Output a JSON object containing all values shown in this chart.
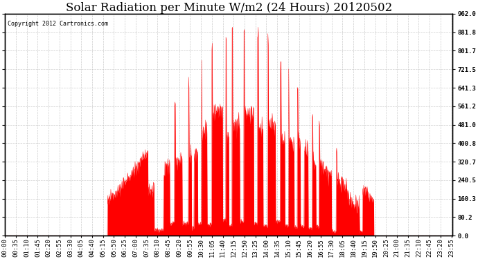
{
  "title": "Solar Radiation per Minute W/m2 (24 Hours) 20120502",
  "copyright_text": "Copyright 2012 Cartronics.com",
  "ylabel_right": [
    "962.0",
    "881.8",
    "801.7",
    "721.5",
    "641.3",
    "561.2",
    "481.0",
    "400.8",
    "320.7",
    "240.5",
    "160.3",
    "80.2",
    "0.0"
  ],
  "ymax": 962.0,
  "ymin": 0.0,
  "yticks": [
    0.0,
    80.2,
    160.3,
    240.5,
    320.7,
    400.8,
    481.0,
    561.2,
    641.3,
    721.5,
    801.7,
    881.8,
    962.0
  ],
  "fill_color": "#FF0000",
  "line_color": "#FF0000",
  "background_color": "#FFFFFF",
  "grid_color": "#C0C0C0",
  "dashed_line_color": "#FF0000",
  "title_fontsize": 12,
  "tick_fontsize": 6.5,
  "x_tick_labels": [
    "00:00",
    "00:35",
    "01:10",
    "01:45",
    "02:20",
    "02:55",
    "03:30",
    "04:05",
    "04:40",
    "05:15",
    "05:50",
    "06:25",
    "07:00",
    "07:35",
    "08:10",
    "08:45",
    "09:20",
    "09:55",
    "10:30",
    "11:05",
    "11:40",
    "12:15",
    "12:50",
    "13:25",
    "14:00",
    "14:35",
    "15:10",
    "15:45",
    "16:20",
    "16:55",
    "17:30",
    "18:05",
    "18:40",
    "19:15",
    "19:50",
    "20:25",
    "21:00",
    "21:35",
    "22:10",
    "22:45",
    "23:20",
    "23:55"
  ]
}
